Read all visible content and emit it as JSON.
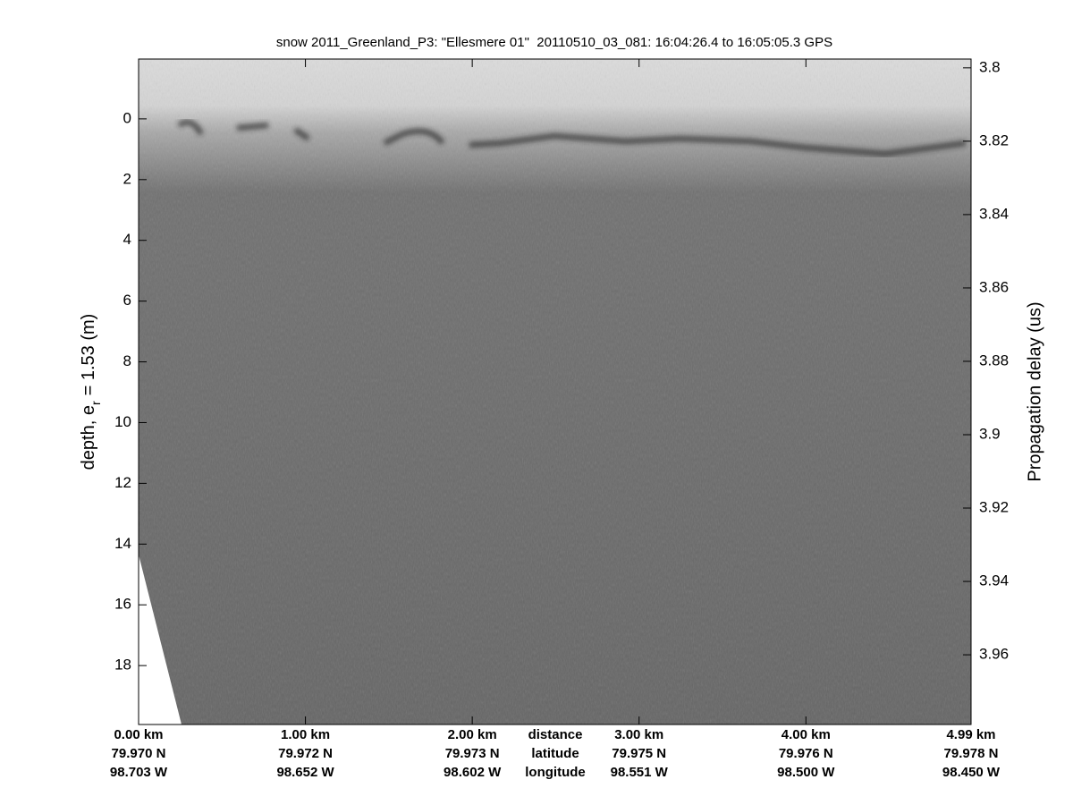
{
  "chart_data": {
    "type": "echogram",
    "title": "snow 2011_Greenland_P3: \"Ellesmere 01\"  20110510_03_081: 16:04:26.4 to 16:05:05.3 GPS",
    "ylabel": [
      "depth, e",
      "r",
      "= 1.53 (m)"
    ],
    "y2label": "Propagation delay (us)",
    "xlim": [
      0,
      4.99
    ],
    "xticks": [
      {
        "value": 0,
        "label": "0.00 km"
      },
      {
        "value": 1,
        "label": "1.00 km"
      },
      {
        "value": 2,
        "label": "2.00 km"
      },
      {
        "value": 3,
        "label": "3.00 km"
      },
      {
        "value": 4,
        "label": "4.00 km"
      },
      {
        "value": 4.99,
        "label": "4.99 km"
      }
    ],
    "latitude_labels": [
      "79.970 N",
      "79.972 N",
      "79.973 N",
      "79.975 N",
      "79.976 N",
      "79.978 N"
    ],
    "longitude_labels": [
      "98.703 W",
      "98.652 W",
      "98.602 W",
      "98.551 W",
      "98.500 W",
      "98.450 W"
    ],
    "row_labels": [
      "distance",
      "latitude",
      "longitude"
    ],
    "ylim": [
      -1.97,
      19.94
    ],
    "yticks": [
      0,
      2,
      4,
      6,
      8,
      10,
      12,
      14,
      16,
      18
    ],
    "y2lim": [
      3.7976,
      3.979
    ],
    "y2ticks": [
      3.8,
      3.82,
      3.84,
      3.86,
      3.88,
      3.9,
      3.92,
      3.94,
      3.96
    ]
  }
}
